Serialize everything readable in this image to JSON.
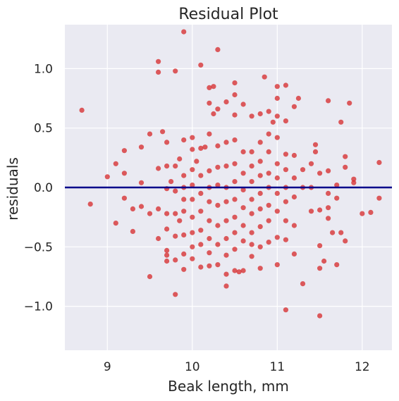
{
  "chart_data": {
    "type": "scatter",
    "title": "Residual Plot",
    "xlabel": "Beak length, mm",
    "ylabel": "residuals",
    "xlim": [
      8.5,
      12.35
    ],
    "ylim": [
      -1.37,
      1.37
    ],
    "xticks": [
      9,
      10,
      11,
      12
    ],
    "yticks": [
      -1.0,
      -0.5,
      0.0,
      0.5,
      1.0
    ],
    "xtick_labels": [
      "9",
      "10",
      "11",
      "12"
    ],
    "ytick_labels": [
      "−1.0",
      "−0.5",
      "0.0",
      "0.5",
      "1.0"
    ],
    "grid": true,
    "reference_line_y": 0.0,
    "colors": {
      "points": "#d62728",
      "reference_line": "#00008b",
      "background": "#eaeaf2",
      "grid": "#ffffff"
    },
    "points": [
      [
        8.7,
        0.65
      ],
      [
        8.8,
        -0.14
      ],
      [
        9.0,
        0.09
      ],
      [
        9.1,
        0.2
      ],
      [
        9.1,
        -0.3
      ],
      [
        9.2,
        0.31
      ],
      [
        9.2,
        0.12
      ],
      [
        9.2,
        -0.09
      ],
      [
        9.3,
        -0.18
      ],
      [
        9.3,
        -0.37
      ],
      [
        9.4,
        0.34
      ],
      [
        9.4,
        0.04
      ],
      [
        9.4,
        -0.16
      ],
      [
        9.5,
        0.45
      ],
      [
        9.5,
        -0.75
      ],
      [
        9.5,
        -0.22
      ],
      [
        9.6,
        1.06
      ],
      [
        9.6,
        0.97
      ],
      [
        9.6,
        0.16
      ],
      [
        9.6,
        -0.18
      ],
      [
        9.6,
        -0.43
      ],
      [
        9.65,
        0.47
      ],
      [
        9.7,
        0.38
      ],
      [
        9.7,
        0.18
      ],
      [
        9.7,
        -0.01
      ],
      [
        9.7,
        -0.22
      ],
      [
        9.7,
        -0.35
      ],
      [
        9.7,
        -0.53
      ],
      [
        9.7,
        -0.57
      ],
      [
        9.7,
        -0.62
      ],
      [
        9.75,
        0.05
      ],
      [
        9.8,
        0.18
      ],
      [
        9.8,
        -0.03
      ],
      [
        9.8,
        -0.22
      ],
      [
        9.8,
        -0.41
      ],
      [
        9.8,
        -0.61
      ],
      [
        9.8,
        -0.9
      ],
      [
        9.8,
        0.98
      ],
      [
        9.85,
        0.24
      ],
      [
        9.85,
        -0.28
      ],
      [
        9.9,
        1.31
      ],
      [
        9.9,
        0.4
      ],
      [
        9.9,
        0.1
      ],
      [
        9.9,
        0.0
      ],
      [
        9.9,
        -0.1
      ],
      [
        9.9,
        -0.2
      ],
      [
        9.9,
        -0.4
      ],
      [
        9.9,
        -0.56
      ],
      [
        9.9,
        -0.69
      ],
      [
        10.0,
        0.42
      ],
      [
        10.0,
        0.32
      ],
      [
        10.0,
        0.15
      ],
      [
        10.0,
        0.02
      ],
      [
        10.0,
        -0.1
      ],
      [
        10.0,
        -0.25
      ],
      [
        10.0,
        -0.38
      ],
      [
        10.0,
        -0.5
      ],
      [
        10.0,
        -0.6
      ],
      [
        10.05,
        0.22
      ],
      [
        10.1,
        1.03
      ],
      [
        10.1,
        0.33
      ],
      [
        10.1,
        0.1
      ],
      [
        10.1,
        -0.05
      ],
      [
        10.1,
        -0.2
      ],
      [
        10.1,
        -0.36
      ],
      [
        10.1,
        -0.48
      ],
      [
        10.1,
        -0.67
      ],
      [
        10.15,
        0.34
      ],
      [
        10.2,
        0.84
      ],
      [
        10.2,
        0.71
      ],
      [
        10.2,
        0.45
      ],
      [
        10.2,
        0.14
      ],
      [
        10.2,
        0.0
      ],
      [
        10.2,
        -0.12
      ],
      [
        10.2,
        -0.28
      ],
      [
        10.2,
        -0.43
      ],
      [
        10.2,
        -0.55
      ],
      [
        10.2,
        -0.66
      ],
      [
        10.25,
        0.62
      ],
      [
        10.25,
        0.85
      ],
      [
        10.3,
        1.16
      ],
      [
        10.3,
        0.66
      ],
      [
        10.3,
        0.35
      ],
      [
        10.3,
        0.17
      ],
      [
        10.3,
        0.02
      ],
      [
        10.3,
        -0.15
      ],
      [
        10.3,
        -0.32
      ],
      [
        10.3,
        -0.48
      ],
      [
        10.3,
        -0.65
      ],
      [
        10.4,
        0.72
      ],
      [
        10.4,
        0.38
      ],
      [
        10.4,
        0.18
      ],
      [
        10.4,
        0.0
      ],
      [
        10.4,
        -0.12
      ],
      [
        10.4,
        -0.28
      ],
      [
        10.4,
        -0.43
      ],
      [
        10.4,
        -0.57
      ],
      [
        10.4,
        -0.73
      ],
      [
        10.4,
        -0.83
      ],
      [
        10.5,
        0.88
      ],
      [
        10.5,
        0.78
      ],
      [
        10.5,
        0.61
      ],
      [
        10.5,
        0.4
      ],
      [
        10.5,
        0.2
      ],
      [
        10.5,
        0.05
      ],
      [
        10.5,
        -0.1
      ],
      [
        10.5,
        -0.25
      ],
      [
        10.5,
        -0.38
      ],
      [
        10.5,
        -0.52
      ],
      [
        10.5,
        -0.7
      ],
      [
        10.55,
        -0.71
      ],
      [
        10.6,
        0.7
      ],
      [
        10.6,
        0.3
      ],
      [
        10.6,
        0.12
      ],
      [
        10.6,
        -0.02
      ],
      [
        10.6,
        -0.17
      ],
      [
        10.6,
        -0.32
      ],
      [
        10.6,
        -0.45
      ],
      [
        10.6,
        -0.7
      ],
      [
        10.7,
        0.6
      ],
      [
        10.7,
        0.3
      ],
      [
        10.7,
        0.18
      ],
      [
        10.7,
        0.05
      ],
      [
        10.7,
        -0.1
      ],
      [
        10.7,
        -0.22
      ],
      [
        10.7,
        -0.38
      ],
      [
        10.7,
        -0.48
      ],
      [
        10.7,
        -0.58
      ],
      [
        10.8,
        0.62
      ],
      [
        10.8,
        0.38
      ],
      [
        10.8,
        0.22
      ],
      [
        10.8,
        0.1
      ],
      [
        10.8,
        -0.05
      ],
      [
        10.8,
        -0.18
      ],
      [
        10.8,
        -0.33
      ],
      [
        10.8,
        -0.5
      ],
      [
        10.8,
        -0.68
      ],
      [
        10.85,
        0.93
      ],
      [
        10.9,
        0.64
      ],
      [
        10.9,
        0.45
      ],
      [
        10.9,
        0.3
      ],
      [
        10.9,
        0.12
      ],
      [
        10.9,
        0.0
      ],
      [
        10.9,
        -0.15
      ],
      [
        10.9,
        -0.28
      ],
      [
        10.9,
        -0.46
      ],
      [
        10.95,
        0.55
      ],
      [
        11.0,
        0.85
      ],
      [
        11.0,
        0.75
      ],
      [
        11.0,
        0.6
      ],
      [
        11.0,
        0.42
      ],
      [
        11.0,
        0.2
      ],
      [
        11.0,
        0.08
      ],
      [
        11.0,
        -0.05
      ],
      [
        11.0,
        -0.2
      ],
      [
        11.0,
        -0.42
      ],
      [
        11.0,
        -0.65
      ],
      [
        11.1,
        0.86
      ],
      [
        11.1,
        0.56
      ],
      [
        11.1,
        0.28
      ],
      [
        11.1,
        0.15
      ],
      [
        11.1,
        0.0
      ],
      [
        11.1,
        -0.12
      ],
      [
        11.1,
        -0.28
      ],
      [
        11.1,
        -0.44
      ],
      [
        11.1,
        -1.03
      ],
      [
        11.2,
        0.68
      ],
      [
        11.2,
        0.27
      ],
      [
        11.2,
        0.08
      ],
      [
        11.2,
        -0.08
      ],
      [
        11.2,
        -0.32
      ],
      [
        11.2,
        -0.56
      ],
      [
        11.25,
        0.75
      ],
      [
        11.3,
        0.15
      ],
      [
        11.3,
        0.0
      ],
      [
        11.3,
        -0.81
      ],
      [
        11.4,
        0.2
      ],
      [
        11.4,
        0.0
      ],
      [
        11.4,
        -0.2
      ],
      [
        11.45,
        0.36
      ],
      [
        11.45,
        0.3
      ],
      [
        11.5,
        0.12
      ],
      [
        11.5,
        -0.19
      ],
      [
        11.5,
        -0.49
      ],
      [
        11.5,
        -0.68
      ],
      [
        11.5,
        -1.08
      ],
      [
        11.55,
        -0.62
      ],
      [
        11.6,
        0.73
      ],
      [
        11.6,
        0.14
      ],
      [
        11.6,
        -0.05
      ],
      [
        11.6,
        -0.17
      ],
      [
        11.6,
        -0.26
      ],
      [
        11.65,
        -0.38
      ],
      [
        11.7,
        0.02
      ],
      [
        11.7,
        -0.09
      ],
      [
        11.7,
        -0.65
      ],
      [
        11.75,
        0.55
      ],
      [
        11.75,
        -0.38
      ],
      [
        11.8,
        0.26
      ],
      [
        11.8,
        0.17
      ],
      [
        11.8,
        -0.45
      ],
      [
        11.85,
        0.71
      ],
      [
        11.9,
        0.07
      ],
      [
        11.9,
        0.04
      ],
      [
        12.0,
        -0.22
      ],
      [
        12.1,
        -0.21
      ],
      [
        12.2,
        0.21
      ],
      [
        12.2,
        -0.09
      ]
    ]
  }
}
